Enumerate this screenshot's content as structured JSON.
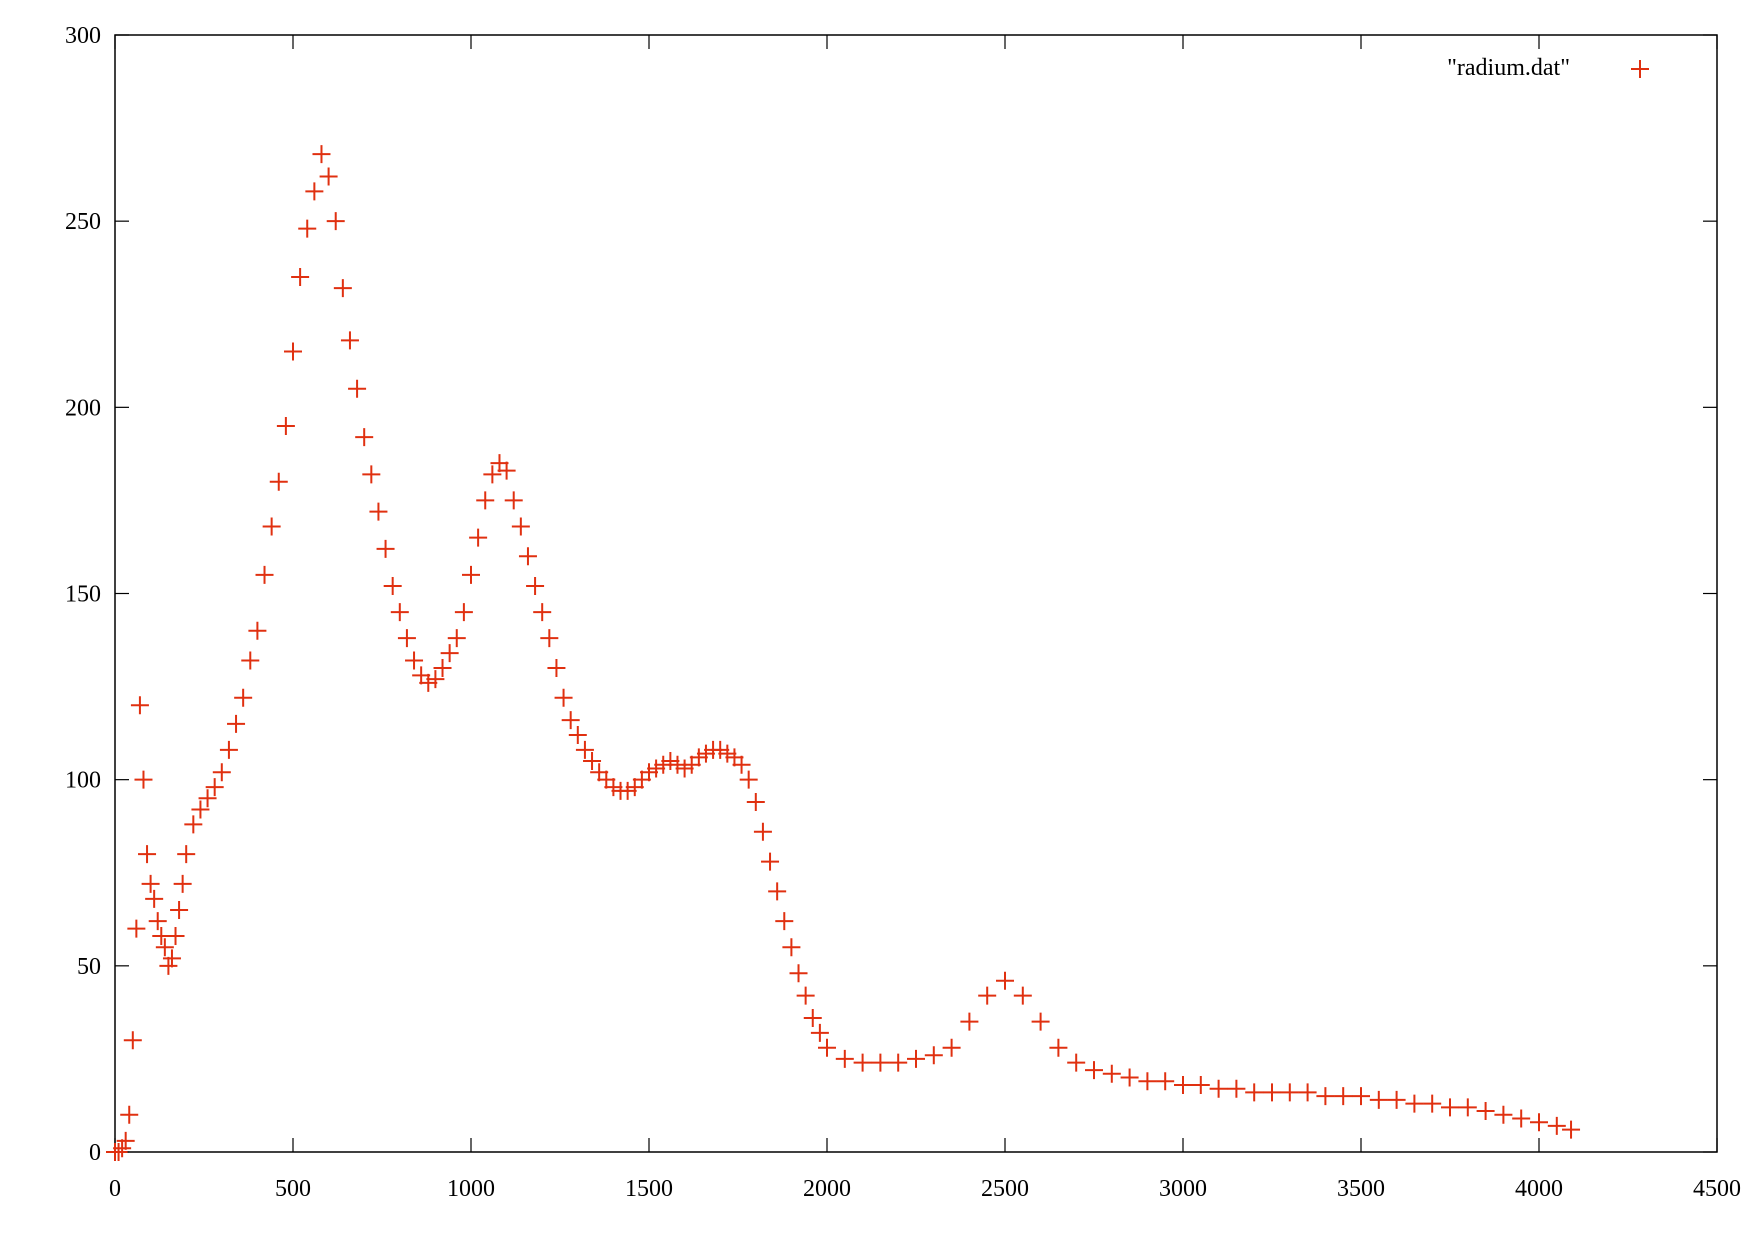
{
  "chart_data": {
    "type": "scatter",
    "title": "",
    "xlabel": "",
    "ylabel": "",
    "xlim": [
      0,
      4500
    ],
    "ylim": [
      0,
      300
    ],
    "x_ticks": [
      0,
      500,
      1000,
      1500,
      2000,
      2500,
      3000,
      3500,
      4000,
      4500
    ],
    "y_ticks": [
      0,
      50,
      100,
      150,
      200,
      250,
      300
    ],
    "x_tick_labels": [
      "0",
      "500",
      "1000",
      "1500",
      "2000",
      "2500",
      "3000",
      "3500",
      "4000",
      "4500"
    ],
    "y_tick_labels": [
      "0",
      "50",
      "100",
      "150",
      "200",
      "250",
      "300"
    ],
    "grid": false,
    "legend_position": "top-right",
    "marker": "+",
    "color": "#e03010",
    "series": [
      {
        "name": "\"radium.dat\"",
        "x": [
          0,
          10,
          20,
          30,
          40,
          50,
          60,
          70,
          80,
          90,
          100,
          110,
          120,
          130,
          140,
          150,
          160,
          170,
          180,
          190,
          200,
          220,
          240,
          260,
          280,
          300,
          320,
          340,
          360,
          380,
          400,
          420,
          440,
          460,
          480,
          500,
          520,
          540,
          560,
          580,
          600,
          620,
          640,
          660,
          680,
          700,
          720,
          740,
          760,
          780,
          800,
          820,
          840,
          860,
          880,
          900,
          920,
          940,
          960,
          980,
          1000,
          1020,
          1040,
          1060,
          1080,
          1100,
          1120,
          1140,
          1160,
          1180,
          1200,
          1220,
          1240,
          1260,
          1280,
          1300,
          1320,
          1340,
          1360,
          1380,
          1400,
          1420,
          1440,
          1460,
          1480,
          1500,
          1520,
          1540,
          1560,
          1580,
          1600,
          1620,
          1640,
          1660,
          1680,
          1700,
          1720,
          1740,
          1760,
          1780,
          1800,
          1820,
          1840,
          1860,
          1880,
          1900,
          1920,
          1940,
          1960,
          1980,
          2000,
          2050,
          2100,
          2150,
          2200,
          2250,
          2300,
          2350,
          2400,
          2450,
          2500,
          2550,
          2600,
          2650,
          2700,
          2750,
          2800,
          2850,
          2900,
          2950,
          3000,
          3050,
          3100,
          3150,
          3200,
          3250,
          3300,
          3350,
          3400,
          3450,
          3500,
          3550,
          3600,
          3650,
          3700,
          3750,
          3800,
          3850,
          3900,
          3950,
          4000,
          4050,
          4090
        ],
        "y": [
          0,
          0,
          1,
          3,
          10,
          30,
          60,
          120,
          100,
          80,
          72,
          68,
          62,
          58,
          55,
          50,
          52,
          58,
          65,
          72,
          80,
          88,
          92,
          95,
          98,
          102,
          108,
          115,
          122,
          132,
          140,
          155,
          168,
          180,
          195,
          215,
          235,
          248,
          258,
          268,
          262,
          250,
          232,
          218,
          205,
          192,
          182,
          172,
          162,
          152,
          145,
          138,
          132,
          128,
          126,
          127,
          130,
          134,
          138,
          145,
          155,
          165,
          175,
          182,
          185,
          183,
          175,
          168,
          160,
          152,
          145,
          138,
          130,
          122,
          116,
          112,
          108,
          105,
          102,
          100,
          98,
          97,
          97,
          98,
          100,
          102,
          103,
          104,
          105,
          104,
          103,
          104,
          106,
          107,
          108,
          108,
          107,
          106,
          104,
          100,
          94,
          86,
          78,
          70,
          62,
          55,
          48,
          42,
          36,
          32,
          28,
          25,
          24,
          24,
          24,
          25,
          26,
          28,
          35,
          42,
          46,
          42,
          35,
          28,
          24,
          22,
          21,
          20,
          19,
          19,
          18,
          18,
          17,
          17,
          16,
          16,
          16,
          16,
          15,
          15,
          15,
          14,
          14,
          13,
          13,
          12,
          12,
          11,
          10,
          9,
          8,
          7,
          6
        ]
      }
    ]
  }
}
